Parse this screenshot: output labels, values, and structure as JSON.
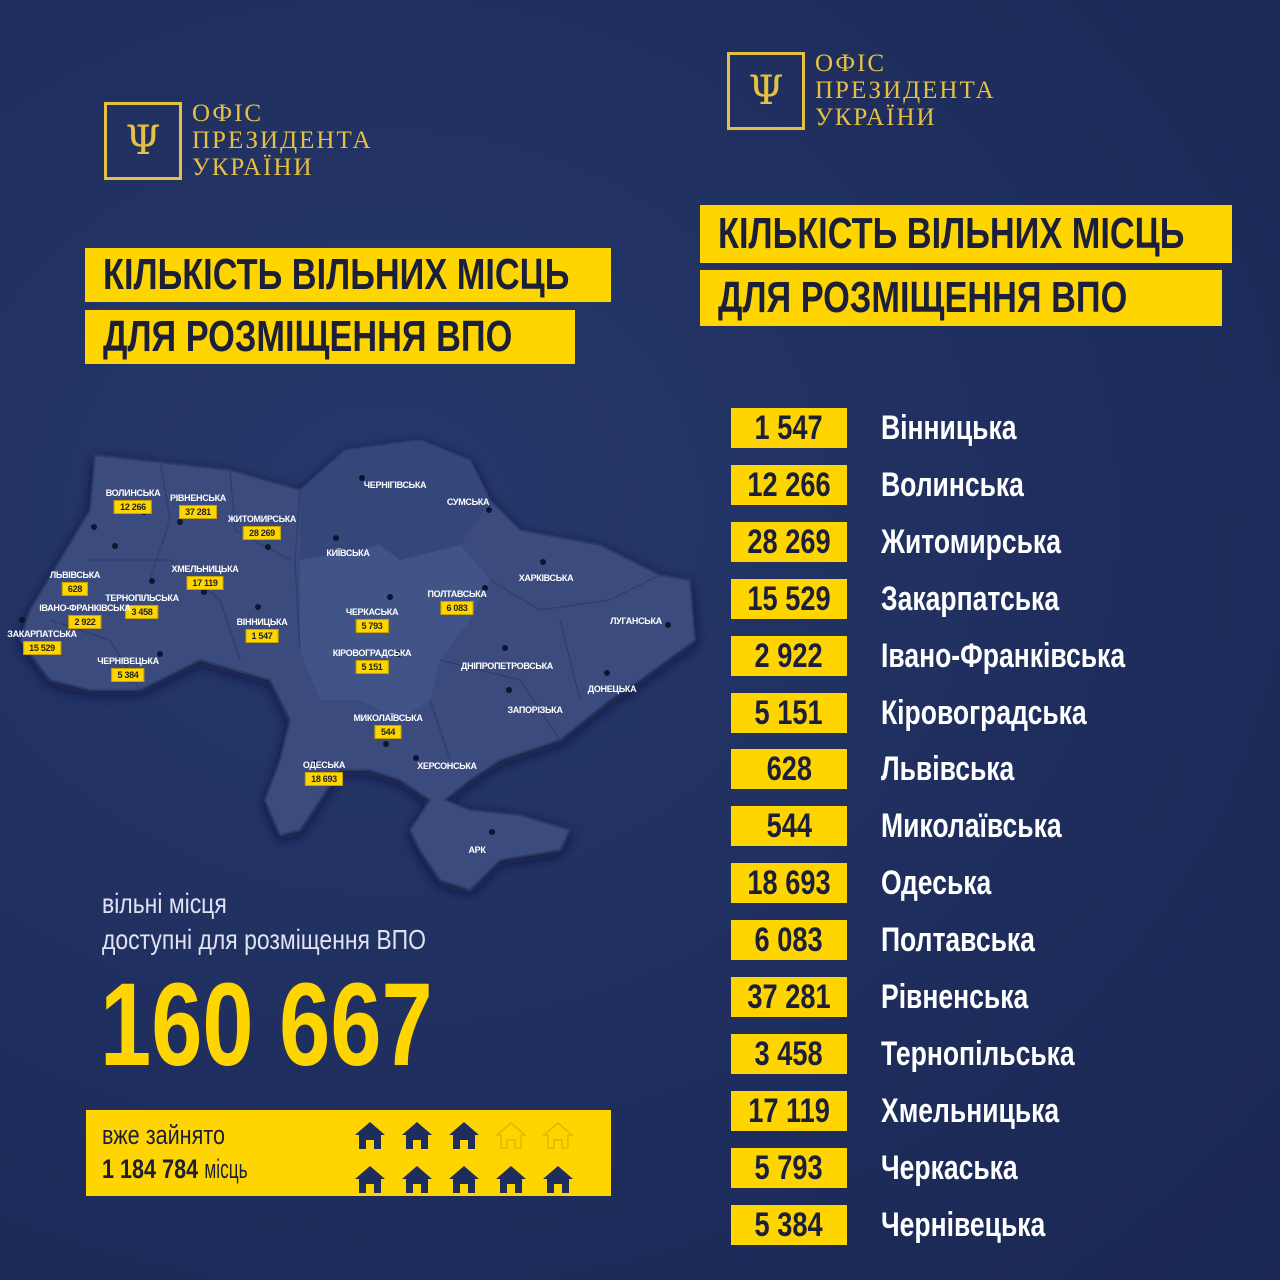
{
  "colors": {
    "background": "#1e2d5c",
    "accent": "#ffd500",
    "logo_gold": "#e6c040"
  },
  "logo": {
    "icon": "trident-icon",
    "line1": "ОФІС",
    "line2": "ПРЕЗИДЕНТА",
    "line3": "УКРАЇНИ"
  },
  "title": {
    "line1": "КІЛЬКІСТЬ ВІЛЬНИХ МІСЦЬ",
    "line2": "ДЛЯ РОЗМІЩЕННЯ ВПО"
  },
  "map": {
    "regions": [
      {
        "name": "ВОЛИНСЬКА",
        "value": "12 266"
      },
      {
        "name": "РІВНЕНСЬКА",
        "value": "37 281"
      },
      {
        "name": "ЖИТОМИРСЬКА",
        "value": "28 269"
      },
      {
        "name": "ЛЬВІВСЬКА",
        "value": "628"
      },
      {
        "name": "ХМЕЛЬНИЦЬКА",
        "value": "17 119"
      },
      {
        "name": "ТЕРНОПІЛЬСЬКА",
        "value": "3 458"
      },
      {
        "name": "ІВАНО-ФРАНКІВСЬКА",
        "value": "2 922"
      },
      {
        "name": "ЗАКАРПАТСЬКА",
        "value": "15 529"
      },
      {
        "name": "ЧЕРНІВЕЦЬКА",
        "value": "5 384"
      },
      {
        "name": "ВІННИЦЬКА",
        "value": "1 547"
      },
      {
        "name": "ЧЕРКАСЬКА",
        "value": "5 793"
      },
      {
        "name": "КІРОВОГРАДСЬКА",
        "value": "5 151"
      },
      {
        "name": "ПОЛТАВСЬКА",
        "value": "6 083"
      },
      {
        "name": "МИКОЛАЇВСЬКА",
        "value": "544"
      },
      {
        "name": "ОДЕСЬКА",
        "value": "18 693"
      },
      {
        "name": "ЧЕРНІГІВСЬКА"
      },
      {
        "name": "СУМСЬКА"
      },
      {
        "name": "КИЇВСЬКА"
      },
      {
        "name": "ХАРКІВСЬКА"
      },
      {
        "name": "ЛУГАНСЬКА"
      },
      {
        "name": "ДНІПРОПЕТРОВСЬКА"
      },
      {
        "name": "ДОНЕЦЬКА"
      },
      {
        "name": "ЗАПОРІЗЬКА"
      },
      {
        "name": "ХЕРСОНСЬКА"
      },
      {
        "name": "АРК"
      }
    ]
  },
  "summary": {
    "line1": "вільні місця",
    "line2": "доступні для розміщення ВПО",
    "total": "160 667"
  },
  "occupied": {
    "label": "вже зайнято",
    "count": "1 184 784",
    "unit": "місць",
    "houses_total": 10,
    "houses_filled": 8,
    "house_icon": "house-icon"
  },
  "list": [
    {
      "value": "1 547",
      "region": "Вінницька"
    },
    {
      "value": "12 266",
      "region": "Волинська"
    },
    {
      "value": "28 269",
      "region": "Житомирська"
    },
    {
      "value": "15 529",
      "region": "Закарпатська"
    },
    {
      "value": "2 922",
      "region": "Івано-Франківська"
    },
    {
      "value": "5 151",
      "region": "Кіровоградська"
    },
    {
      "value": "628",
      "region": "Львівська"
    },
    {
      "value": "544",
      "region": "Миколаївська"
    },
    {
      "value": "18 693",
      "region": "Одеська"
    },
    {
      "value": "6 083",
      "region": "Полтавська"
    },
    {
      "value": "37 281",
      "region": "Рівненська"
    },
    {
      "value": "3 458",
      "region": "Тернопільська"
    },
    {
      "value": "17 119",
      "region": "Хмельницька"
    },
    {
      "value": "5 793",
      "region": "Черкаська"
    },
    {
      "value": "5 384",
      "region": "Чернівецька"
    }
  ]
}
